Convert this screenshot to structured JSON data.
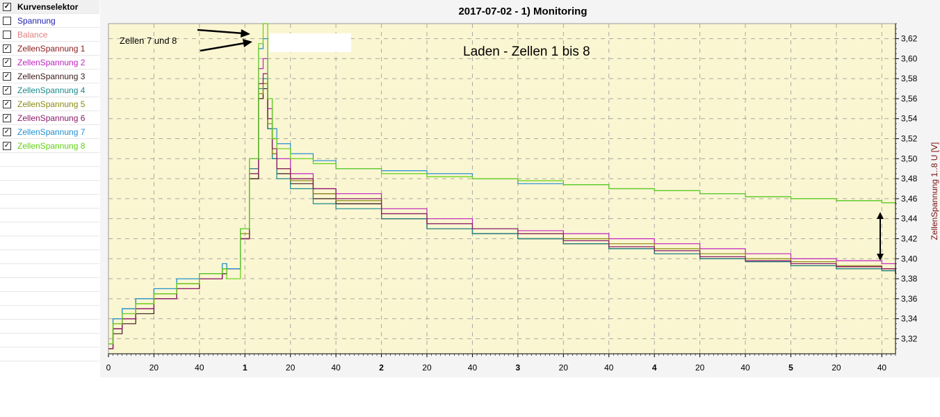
{
  "selector": {
    "header": {
      "label": "Kurvenselektor",
      "checked": true
    },
    "items": [
      {
        "label": "Spannung",
        "checked": false,
        "color": "#1f1fb0"
      },
      {
        "label": "Balance",
        "checked": false,
        "color": "#e08080"
      },
      {
        "label": "ZellenSpannung 1",
        "checked": true,
        "color": "#8b1a1a"
      },
      {
        "label": "ZellenSpannung 2",
        "checked": true,
        "color": "#c020c0"
      },
      {
        "label": "ZellenSpannung 3",
        "checked": true,
        "color": "#3a1a1a"
      },
      {
        "label": "ZellenSpannung 4",
        "checked": true,
        "color": "#1a8a8a"
      },
      {
        "label": "ZellenSpannung 5",
        "checked": true,
        "color": "#8a8a10"
      },
      {
        "label": "ZellenSpannung 6",
        "checked": true,
        "color": "#8a1a6a"
      },
      {
        "label": "ZellenSpannung 7",
        "checked": true,
        "color": "#2090d0"
      },
      {
        "label": "ZellenSpannung 8",
        "checked": true,
        "color": "#60d010"
      }
    ]
  },
  "chart": {
    "title": "2017-07-02 - 1) Monitoring",
    "annotation_main": "Laden - Zellen 1 bis 8",
    "annotation_cells": "Zellen 7 und 8",
    "y_axis_label": "ZellenSpannung 1..8  U  [V]"
  },
  "colors": {
    "plot_bg": "#fbf6d2",
    "grid": "#a0a0a0",
    "axis_title": "#7a1010"
  },
  "chart_data": {
    "type": "line",
    "title": "2017-07-02 - 1) Monitoring",
    "ylabel": "ZellenSpannung 1..8  U  [V]",
    "ylim": [
      3.305,
      3.635
    ],
    "xlim_minutes": [
      0,
      346
    ],
    "x_tick_labels": [
      "0",
      "20",
      "40",
      "1",
      "20",
      "40",
      "2",
      "20",
      "40",
      "3",
      "20",
      "40",
      "4",
      "20",
      "40",
      "5",
      "20",
      "40"
    ],
    "x_tick_minutes": [
      0,
      20,
      40,
      60,
      80,
      100,
      120,
      140,
      160,
      180,
      200,
      220,
      240,
      260,
      280,
      300,
      320,
      340
    ],
    "y_ticks": [
      "3,32",
      "3,34",
      "3,36",
      "3,38",
      "3,40",
      "3,42",
      "3,44",
      "3,46",
      "3,48",
      "3,50",
      "3,52",
      "3,54",
      "3,56",
      "3,58",
      "3,60",
      "3,62"
    ],
    "y_tick_values": [
      3.32,
      3.34,
      3.36,
      3.38,
      3.4,
      3.42,
      3.44,
      3.46,
      3.48,
      3.5,
      3.52,
      3.54,
      3.56,
      3.58,
      3.6,
      3.62
    ],
    "grid": true,
    "series": [
      {
        "name": "ZellenSpannung 1",
        "color": "#8b1a1a",
        "x": [
          0,
          2,
          6,
          12,
          20,
          30,
          40,
          50,
          52,
          58,
          62,
          66,
          68,
          70,
          72,
          74,
          80,
          90,
          100,
          120,
          140,
          160,
          180,
          200,
          220,
          240,
          260,
          280,
          300,
          320,
          340,
          346
        ],
        "y": [
          3.31,
          3.33,
          3.34,
          3.35,
          3.365,
          3.375,
          3.38,
          3.39,
          3.39,
          3.42,
          3.48,
          3.56,
          3.575,
          3.53,
          3.505,
          3.49,
          3.48,
          3.465,
          3.455,
          3.44,
          3.43,
          3.425,
          3.42,
          3.415,
          3.41,
          3.405,
          3.4,
          3.398,
          3.395,
          3.392,
          3.39,
          3.385
        ]
      },
      {
        "name": "ZellenSpannung 2",
        "color": "#c020c0",
        "x": [
          0,
          2,
          6,
          12,
          20,
          30,
          40,
          50,
          52,
          58,
          62,
          66,
          68,
          70,
          72,
          74,
          80,
          90,
          100,
          120,
          140,
          160,
          180,
          200,
          220,
          240,
          260,
          280,
          300,
          320,
          340,
          346
        ],
        "y": [
          3.31,
          3.33,
          3.34,
          3.35,
          3.36,
          3.37,
          3.38,
          3.39,
          3.39,
          3.42,
          3.49,
          3.59,
          3.6,
          3.55,
          3.52,
          3.5,
          3.485,
          3.47,
          3.465,
          3.45,
          3.44,
          3.43,
          3.428,
          3.425,
          3.42,
          3.415,
          3.41,
          3.405,
          3.4,
          3.398,
          3.395,
          3.39
        ]
      },
      {
        "name": "ZellenSpannung 3",
        "color": "#3a1a1a",
        "x": [
          0,
          2,
          6,
          12,
          20,
          30,
          40,
          50,
          52,
          58,
          62,
          66,
          68,
          70,
          72,
          74,
          80,
          90,
          100,
          120,
          140,
          160,
          180,
          200,
          220,
          240,
          260,
          280,
          300,
          320,
          340,
          346
        ],
        "y": [
          3.31,
          3.325,
          3.335,
          3.345,
          3.36,
          3.37,
          3.38,
          3.385,
          3.39,
          3.42,
          3.48,
          3.56,
          3.57,
          3.53,
          3.5,
          3.485,
          3.475,
          3.46,
          3.455,
          3.44,
          3.43,
          3.425,
          3.42,
          3.415,
          3.41,
          3.405,
          3.4,
          3.397,
          3.393,
          3.39,
          3.388,
          3.385
        ]
      },
      {
        "name": "ZellenSpannung 4",
        "color": "#1a8a8a",
        "x": [
          0,
          2,
          6,
          12,
          20,
          30,
          40,
          50,
          52,
          58,
          62,
          66,
          68,
          70,
          72,
          74,
          80,
          90,
          100,
          120,
          140,
          160,
          180,
          200,
          220,
          240,
          260,
          280,
          300,
          320,
          340,
          346
        ],
        "y": [
          3.315,
          3.34,
          3.35,
          3.36,
          3.37,
          3.38,
          3.385,
          3.395,
          3.39,
          3.43,
          3.49,
          3.57,
          3.58,
          3.53,
          3.5,
          3.48,
          3.47,
          3.455,
          3.45,
          3.44,
          3.43,
          3.425,
          3.42,
          3.415,
          3.41,
          3.405,
          3.4,
          3.397,
          3.393,
          3.39,
          3.388,
          3.385
        ]
      },
      {
        "name": "ZellenSpannung 5",
        "color": "#8a8a10",
        "x": [
          0,
          2,
          6,
          12,
          20,
          30,
          40,
          50,
          52,
          58,
          62,
          66,
          68,
          70,
          72,
          74,
          80,
          90,
          100,
          120,
          140,
          160,
          180,
          200,
          220,
          240,
          260,
          280,
          300,
          320,
          340,
          346
        ],
        "y": [
          3.315,
          3.335,
          3.345,
          3.355,
          3.365,
          3.375,
          3.385,
          3.39,
          3.39,
          3.425,
          3.485,
          3.565,
          3.575,
          3.535,
          3.505,
          3.49,
          3.478,
          3.465,
          3.458,
          3.445,
          3.435,
          3.43,
          3.425,
          3.42,
          3.415,
          3.41,
          3.405,
          3.4,
          3.397,
          3.393,
          3.39,
          3.388
        ]
      },
      {
        "name": "ZellenSpannung 6",
        "color": "#8a1a6a",
        "x": [
          0,
          2,
          6,
          12,
          20,
          30,
          40,
          50,
          52,
          58,
          62,
          66,
          68,
          70,
          72,
          74,
          80,
          90,
          100,
          120,
          140,
          160,
          180,
          200,
          220,
          240,
          260,
          280,
          300,
          320,
          340,
          346
        ],
        "y": [
          3.31,
          3.33,
          3.34,
          3.35,
          3.36,
          3.37,
          3.38,
          3.39,
          3.39,
          3.42,
          3.485,
          3.575,
          3.585,
          3.54,
          3.51,
          3.49,
          3.48,
          3.47,
          3.46,
          3.445,
          3.435,
          3.43,
          3.425,
          3.418,
          3.412,
          3.408,
          3.402,
          3.398,
          3.395,
          3.392,
          3.39,
          3.388
        ]
      },
      {
        "name": "ZellenSpannung 7",
        "color": "#2090d0",
        "x": [
          0,
          2,
          6,
          12,
          20,
          30,
          40,
          50,
          52,
          58,
          62,
          66,
          68,
          70,
          72,
          74,
          80,
          90,
          100,
          120,
          140,
          160,
          180,
          200,
          220,
          240,
          260,
          280,
          300,
          320,
          340,
          346
        ],
        "y": [
          3.315,
          3.34,
          3.35,
          3.36,
          3.37,
          3.38,
          3.385,
          3.395,
          3.39,
          3.43,
          3.5,
          3.61,
          3.62,
          3.56,
          3.53,
          3.515,
          3.505,
          3.498,
          3.49,
          3.488,
          3.485,
          3.48,
          3.475,
          3.474,
          3.47,
          3.468,
          3.465,
          3.462,
          3.46,
          3.458,
          3.456,
          3.455
        ]
      },
      {
        "name": "ZellenSpannung 8",
        "color": "#60d010",
        "x": [
          0,
          2,
          6,
          12,
          20,
          30,
          40,
          50,
          52,
          58,
          62,
          66,
          68,
          70,
          72,
          74,
          80,
          90,
          100,
          120,
          140,
          160,
          180,
          200,
          220,
          240,
          260,
          280,
          300,
          320,
          340,
          346
        ],
        "y": [
          3.315,
          3.335,
          3.345,
          3.355,
          3.365,
          3.375,
          3.385,
          3.39,
          3.38,
          3.43,
          3.5,
          3.615,
          3.635,
          3.56,
          3.52,
          3.51,
          3.5,
          3.495,
          3.49,
          3.485,
          3.482,
          3.48,
          3.478,
          3.474,
          3.47,
          3.468,
          3.465,
          3.462,
          3.46,
          3.458,
          3.456,
          3.455
        ]
      }
    ]
  }
}
